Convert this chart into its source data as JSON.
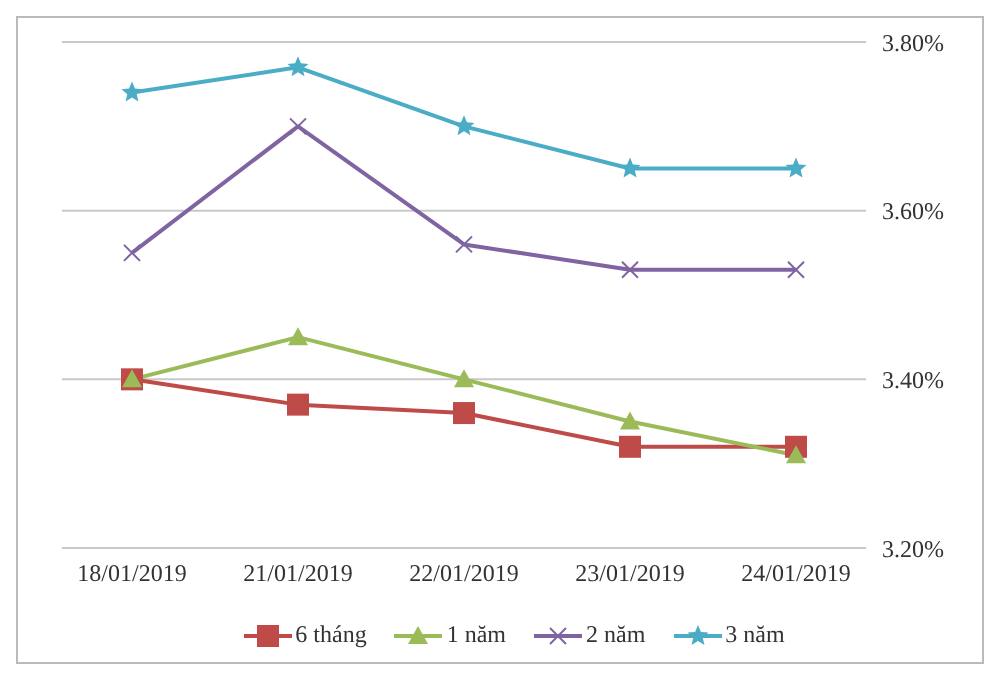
{
  "chart_data": {
    "type": "line",
    "categories": [
      "18/01/2019",
      "21/01/2019",
      "22/01/2019",
      "23/01/2019",
      "24/01/2019"
    ],
    "series": [
      {
        "name": "6 tháng",
        "color": "#be4b48",
        "marker": "square",
        "values": [
          3.4,
          3.37,
          3.36,
          3.32,
          3.32
        ]
      },
      {
        "name": "1 năm",
        "color": "#9bbb59",
        "marker": "triangle",
        "values": [
          3.4,
          3.45,
          3.4,
          3.35,
          3.31
        ]
      },
      {
        "name": "2 năm",
        "color": "#8064a2",
        "marker": "cross",
        "values": [
          3.55,
          3.7,
          3.56,
          3.53,
          3.53
        ]
      },
      {
        "name": "3 năm",
        "color": "#4bacc6",
        "marker": "star",
        "values": [
          3.74,
          3.77,
          3.7,
          3.65,
          3.65
        ]
      }
    ],
    "ylim": [
      3.2,
      3.8
    ],
    "yticks": [
      {
        "value": 3.2,
        "label": "3.20%"
      },
      {
        "value": 3.4,
        "label": "3.40%"
      },
      {
        "value": 3.6,
        "label": "3.60%"
      },
      {
        "value": 3.8,
        "label": "3.80%"
      }
    ],
    "grid": "y",
    "legend": "bottom"
  }
}
